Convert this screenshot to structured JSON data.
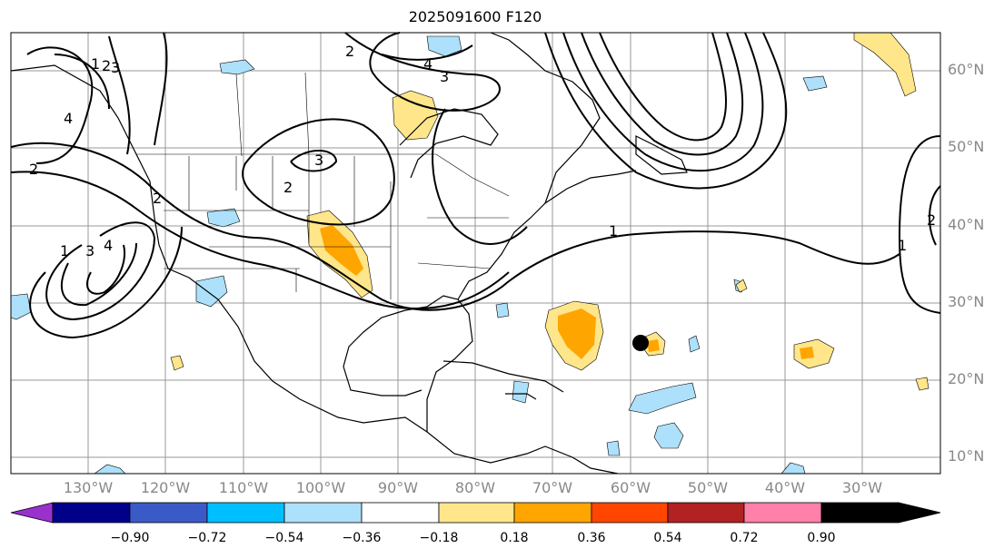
{
  "title": "2025091600 F120",
  "lat_labels": [
    "60°N",
    "50°N",
    "40°N",
    "30°N",
    "20°N",
    "10°N"
  ],
  "lon_labels": [
    "130°W",
    "120°W",
    "110°W",
    "100°W",
    "90°W",
    "80°W",
    "70°W",
    "60°W",
    "50°W",
    "40°W",
    "30°W"
  ],
  "contour_labels": [
    "1",
    "2",
    "3",
    "4",
    "1",
    "2",
    "3",
    "4",
    "2",
    "2",
    "3",
    "4",
    "3",
    "2",
    "1",
    "1",
    "2"
  ],
  "colorbar": {
    "colors": [
      "#9932CC",
      "#00008B",
      "#3A5BC7",
      "#00BFFF",
      "#ADE0FA",
      "#FFFFFF",
      "#FFE68A",
      "#FFA500",
      "#FF4500",
      "#B22222",
      "#FF80A8"
    ],
    "ticks": [
      "−0.90",
      "−0.72",
      "−0.54",
      "−0.36",
      "−0.18",
      "0.18",
      "0.36",
      "0.54",
      "0.72",
      "0.90"
    ]
  },
  "marker": {
    "lon": -59,
    "lat": 25
  }
}
